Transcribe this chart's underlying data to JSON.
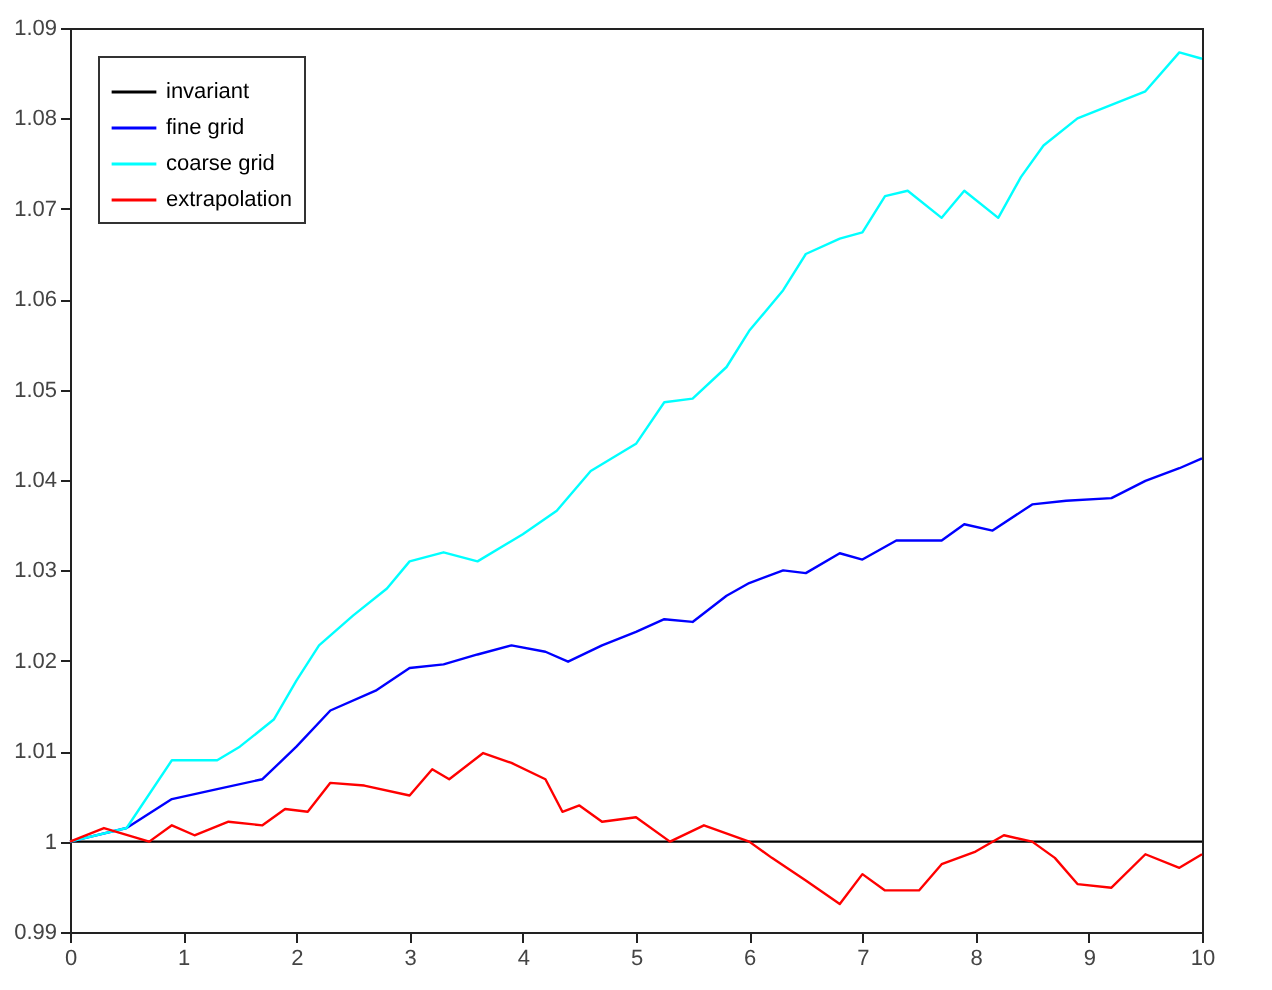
{
  "chart_data": {
    "type": "line",
    "xlim": [
      0,
      10
    ],
    "ylim": [
      0.99,
      1.09
    ],
    "xticks": [
      0,
      1,
      2,
      3,
      4,
      5,
      6,
      7,
      8,
      9,
      10
    ],
    "yticks": [
      0.99,
      1,
      1.01,
      1.02,
      1.03,
      1.04,
      1.05,
      1.06,
      1.07,
      1.08,
      1.09
    ],
    "legend": "top left",
    "grid": false,
    "series": [
      {
        "name": "invariant",
        "color": "#000000",
        "x": [
          0,
          10
        ],
        "values": [
          1,
          1
        ]
      },
      {
        "name": "fine grid",
        "color": "#0000ff",
        "x": [
          0,
          0.5,
          0.9,
          1.3,
          1.7,
          2.0,
          2.3,
          2.7,
          3.0,
          3.3,
          3.6,
          3.9,
          4.2,
          4.4,
          4.7,
          5.0,
          5.25,
          5.5,
          5.8,
          6.0,
          6.3,
          6.5,
          6.8,
          7.0,
          7.3,
          7.7,
          7.9,
          8.15,
          8.5,
          8.8,
          9.2,
          9.5,
          9.8,
          10
        ],
        "values": [
          1,
          1.0015,
          1.0047,
          1.0058,
          1.0069,
          1.0105,
          1.0145,
          1.0167,
          1.0192,
          1.0196,
          1.0207,
          1.0217,
          1.021,
          1.0199,
          1.0217,
          1.0232,
          1.0246,
          1.0243,
          1.0272,
          1.0286,
          1.03,
          1.0297,
          1.0319,
          1.0312,
          1.0333,
          1.0333,
          1.0351,
          1.0344,
          1.0373,
          1.0377,
          1.038,
          1.0399,
          1.0413,
          1.0424
        ]
      },
      {
        "name": "coarse grid",
        "color": "#00ffff",
        "x": [
          0,
          0.5,
          0.9,
          1.3,
          1.5,
          1.8,
          2.0,
          2.2,
          2.5,
          2.8,
          3.0,
          3.3,
          3.6,
          4.0,
          4.3,
          4.6,
          5.0,
          5.25,
          5.5,
          5.8,
          6.0,
          6.3,
          6.5,
          6.8,
          7.0,
          7.2,
          7.4,
          7.7,
          7.9,
          8.2,
          8.4,
          8.6,
          8.9,
          9.2,
          9.5,
          9.8,
          10
        ],
        "values": [
          1,
          1.0015,
          1.009,
          1.009,
          1.0105,
          1.0135,
          1.0178,
          1.0217,
          1.025,
          1.028,
          1.031,
          1.032,
          1.031,
          1.034,
          1.0366,
          1.041,
          1.044,
          1.0486,
          1.049,
          1.0525,
          1.0565,
          1.061,
          1.065,
          1.0667,
          1.0674,
          1.0714,
          1.072,
          1.069,
          1.072,
          1.069,
          1.0735,
          1.077,
          1.08,
          1.0815,
          1.083,
          1.0873,
          1.0866
        ]
      },
      {
        "name": "extrapolation",
        "color": "#ff0000",
        "x": [
          0,
          0.3,
          0.7,
          0.9,
          1.1,
          1.4,
          1.7,
          1.9,
          2.1,
          2.3,
          2.6,
          3.0,
          3.2,
          3.35,
          3.65,
          3.9,
          4.2,
          4.35,
          4.5,
          4.7,
          5.0,
          5.3,
          5.6,
          6.0,
          6.2,
          6.5,
          6.8,
          7.0,
          7.2,
          7.5,
          7.7,
          8.0,
          8.25,
          8.5,
          8.7,
          8.9,
          9.2,
          9.5,
          9.8,
          10
        ],
        "values": [
          1,
          1.0015,
          1,
          1.0018,
          1.0007,
          1.0022,
          1.0018,
          1.0036,
          1.0033,
          1.0065,
          1.0062,
          1.0051,
          1.008,
          1.0069,
          1.0098,
          1.0087,
          1.0069,
          1.0033,
          1.004,
          1.0022,
          1.0027,
          1,
          1.0018,
          1,
          0.9982,
          0.9957,
          0.9931,
          0.9964,
          0.9946,
          0.9946,
          0.9975,
          0.9989,
          1.0007,
          1,
          0.9982,
          0.9953,
          0.9949,
          0.9986,
          0.9971,
          0.9986
        ]
      }
    ]
  }
}
